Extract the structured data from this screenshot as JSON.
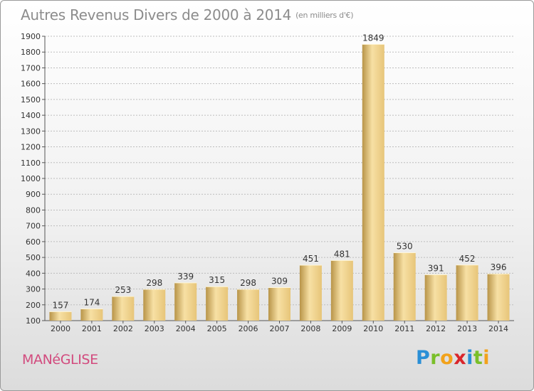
{
  "header": {
    "title": "Autres Revenus Divers de 2000 à 2014",
    "subtitle": "(en milliers d'€)"
  },
  "footer": {
    "commune": "MANéGLISE"
  },
  "logo": {
    "letters": [
      {
        "ch": "P",
        "color": "#2a8fd6"
      },
      {
        "ch": "r",
        "color": "#7abf2a"
      },
      {
        "ch": "o",
        "color": "#f2a21b"
      },
      {
        "ch": "x",
        "color": "#d9262c"
      },
      {
        "ch": "i",
        "color": "#2a8fd6"
      },
      {
        "ch": "t",
        "color": "#7abf2a"
      },
      {
        "ch": "i",
        "color": "#f2a21b"
      }
    ]
  },
  "colors": {
    "bar_light": "#f7e0a4",
    "bar_mid": "#e7c579",
    "bar_dark": "#b89448",
    "grid": "#bdbdbd",
    "axis_text": "#333333"
  },
  "chart_data": {
    "type": "bar",
    "categories": [
      "2000",
      "2001",
      "2002",
      "2003",
      "2004",
      "2005",
      "2006",
      "2007",
      "2008",
      "2009",
      "2010",
      "2011",
      "2012",
      "2013",
      "2014"
    ],
    "values": [
      157,
      174,
      253,
      298,
      339,
      315,
      298,
      309,
      451,
      481,
      1849,
      530,
      391,
      452,
      396
    ],
    "data_labels": [
      "157",
      "174",
      "253",
      "298",
      "339",
      "315",
      "298",
      "309",
      "451",
      "481",
      "1849",
      "530",
      "391",
      "452",
      "396"
    ],
    "title": "Autres Revenus Divers de 2000 à 2014",
    "xlabel": "",
    "ylabel": "",
    "ylim": [
      100,
      1900
    ],
    "yticks": [
      100,
      200,
      300,
      400,
      500,
      600,
      700,
      800,
      900,
      1000,
      1100,
      1200,
      1300,
      1400,
      1500,
      1600,
      1700,
      1800,
      1900
    ],
    "ytick_labels": [
      "100",
      "200",
      "300",
      "400",
      "500",
      "600",
      "700",
      "800",
      "900",
      "1000",
      "1100",
      "1200",
      "1300",
      "1400",
      "1500",
      "1600",
      "1700",
      "1800",
      "1900"
    ],
    "grid": true
  }
}
